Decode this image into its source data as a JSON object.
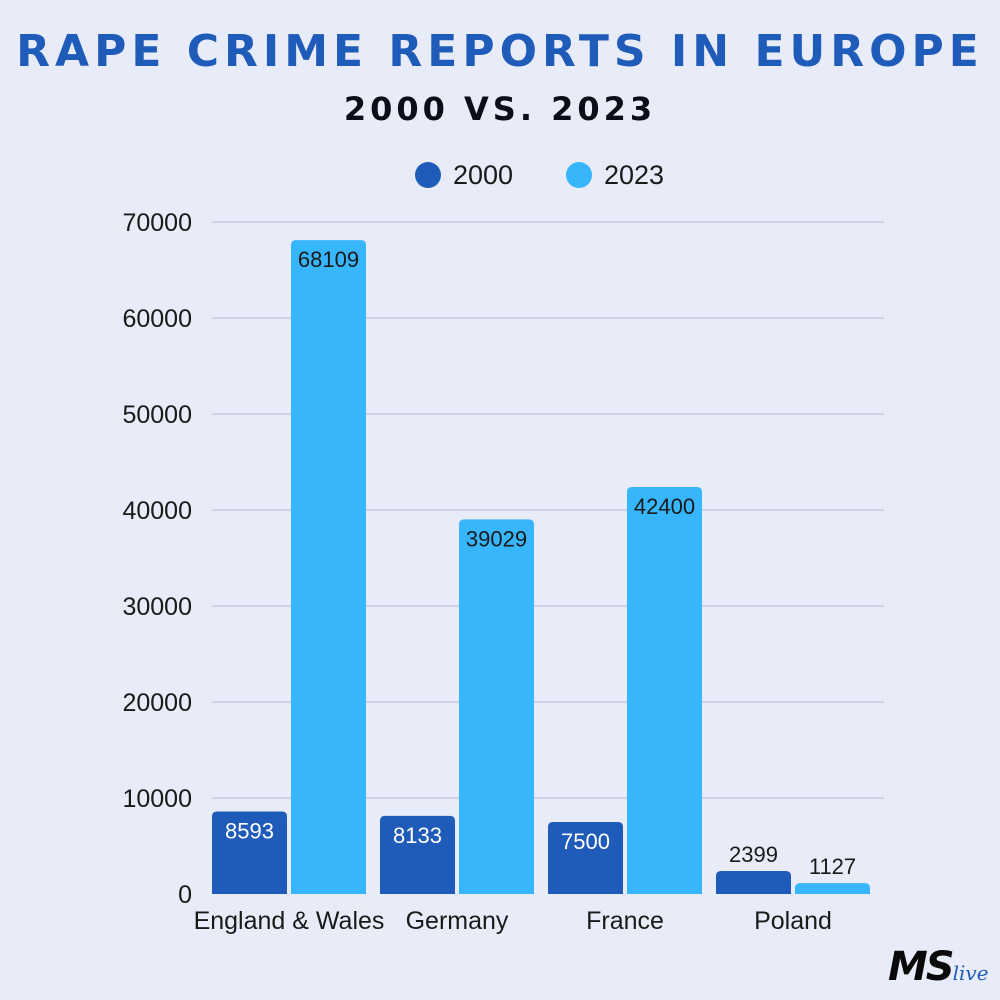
{
  "chart_data": {
    "type": "bar",
    "title": "RAPE CRIME REPORTS IN EUROPE",
    "subtitle": "2000 VS. 2023",
    "categories": [
      "England & Wales",
      "Germany",
      "France",
      "Poland"
    ],
    "series": [
      {
        "name": "2000",
        "values": [
          8593,
          8133,
          7500,
          2399
        ],
        "color": "#1f5bb8"
      },
      {
        "name": "2023",
        "values": [
          68109,
          39029,
          42400,
          1127
        ],
        "color": "#38b6fc"
      }
    ],
    "ylim": [
      0,
      70000
    ],
    "yticks": [
      "0",
      "10000",
      "20000",
      "30000",
      "40000",
      "50000",
      "60000",
      "70000"
    ],
    "grid": true,
    "legend": "top-center"
  },
  "branding": {
    "logo_main": "MS",
    "logo_sub": "live"
  }
}
